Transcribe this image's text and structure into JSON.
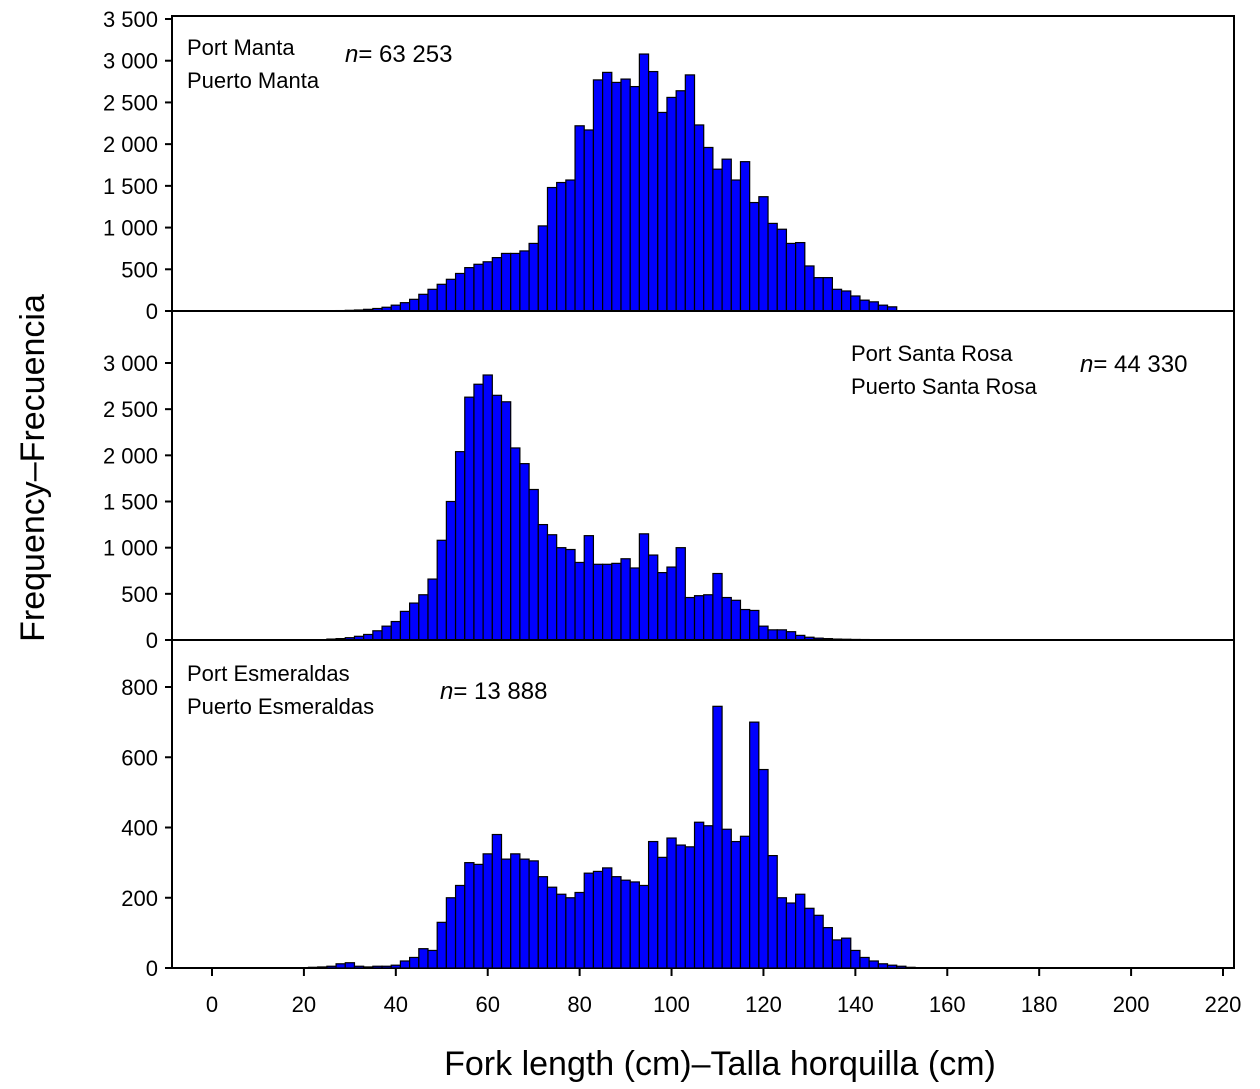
{
  "chart_data": {
    "type": "bar",
    "xlabel": "Fork length (cm)–Talla horquilla (cm)",
    "ylabel": "Frequency–Frecuencia",
    "xlim": [
      -8,
      220
    ],
    "x_ticks": [
      0,
      20,
      40,
      60,
      80,
      100,
      120,
      140,
      160,
      180,
      200,
      220
    ],
    "bin_width_cm": 2,
    "grid": false,
    "bar_color": "#0000ff",
    "bar_edge_color": "#000000",
    "panels": [
      {
        "label_line1": "Port Manta",
        "label_line2": "Puerto Manta",
        "n_prefix": "n",
        "n_suffix": "= 63 253",
        "ylim": [
          0,
          3500
        ],
        "y_ticks": [
          0,
          500,
          1000,
          1500,
          2000,
          2500,
          3000,
          3500
        ],
        "y_tick_labels": [
          "0",
          "500",
          "1 000",
          "1 500",
          "2 000",
          "2 500",
          "3 000",
          "3 500"
        ],
        "x": [
          26,
          28,
          30,
          32,
          34,
          36,
          38,
          40,
          42,
          44,
          46,
          48,
          50,
          52,
          54,
          56,
          58,
          60,
          62,
          64,
          66,
          68,
          70,
          72,
          74,
          76,
          78,
          80,
          82,
          84,
          86,
          88,
          90,
          92,
          94,
          96,
          98,
          100,
          102,
          104,
          106,
          108,
          110,
          112,
          114,
          116,
          118,
          120,
          122,
          124,
          126,
          128,
          130,
          132,
          134,
          136,
          138,
          140,
          142,
          144,
          146,
          148
        ],
        "values": [
          3,
          5,
          8,
          12,
          20,
          30,
          45,
          70,
          100,
          140,
          200,
          260,
          320,
          380,
          450,
          520,
          560,
          590,
          640,
          690,
          690,
          720,
          810,
          1020,
          1480,
          1540,
          1570,
          2220,
          2170,
          2770,
          2860,
          2740,
          2780,
          2690,
          3080,
          2870,
          2380,
          2560,
          2640,
          2830,
          2230,
          1960,
          1700,
          1820,
          1570,
          1790,
          1300,
          1370,
          1050,
          980,
          810,
          820,
          540,
          400,
          400,
          260,
          240,
          180,
          130,
          110,
          70,
          50
        ]
      },
      {
        "label_line1": "Port Santa Rosa",
        "label_line2": "Puerto Santa Rosa",
        "n_prefix": "n",
        "n_suffix": "= 44 330",
        "ylim": [
          0,
          3000
        ],
        "y_ticks": [
          0,
          500,
          1000,
          1500,
          2000,
          2500,
          3000
        ],
        "y_tick_labels": [
          "0",
          "500",
          "1 000",
          "1 500",
          "2 000",
          "2 500",
          "3 000"
        ],
        "x": [
          26,
          28,
          30,
          32,
          34,
          36,
          38,
          40,
          42,
          44,
          46,
          48,
          50,
          52,
          54,
          56,
          58,
          60,
          62,
          64,
          66,
          68,
          70,
          72,
          74,
          76,
          78,
          80,
          82,
          84,
          86,
          88,
          90,
          92,
          94,
          96,
          98,
          100,
          102,
          104,
          106,
          108,
          110,
          112,
          114,
          116,
          118,
          120,
          122,
          124,
          126,
          128,
          130,
          132,
          134,
          136,
          138,
          140,
          142,
          144,
          146,
          148
        ],
        "values": [
          10,
          15,
          25,
          40,
          60,
          100,
          150,
          200,
          310,
          400,
          490,
          660,
          1080,
          1500,
          2040,
          2630,
          2770,
          2870,
          2650,
          2580,
          2080,
          1910,
          1630,
          1250,
          1140,
          1000,
          980,
          840,
          1130,
          820,
          820,
          830,
          880,
          780,
          1150,
          920,
          730,
          790,
          1000,
          460,
          480,
          490,
          720,
          460,
          430,
          330,
          320,
          150,
          110,
          110,
          90,
          50,
          30,
          20,
          15,
          10,
          8,
          6,
          5,
          4,
          3,
          2
        ]
      },
      {
        "label_line1": "Port Esmeraldas",
        "label_line2": "Puerto  Esmeraldas",
        "n_prefix": "n",
        "n_suffix": "= 13 888",
        "ylim": [
          0,
          800
        ],
        "y_ticks": [
          0,
          200,
          400,
          600,
          800
        ],
        "y_tick_labels": [
          "0",
          "200",
          "400",
          "600",
          "800"
        ],
        "x": [
          22,
          24,
          26,
          28,
          30,
          32,
          34,
          36,
          38,
          40,
          42,
          44,
          46,
          48,
          50,
          52,
          54,
          56,
          58,
          60,
          62,
          64,
          66,
          68,
          70,
          72,
          74,
          76,
          78,
          80,
          82,
          84,
          86,
          88,
          90,
          92,
          94,
          96,
          98,
          100,
          102,
          104,
          106,
          108,
          110,
          112,
          114,
          116,
          118,
          120,
          122,
          124,
          126,
          128,
          130,
          132,
          134,
          136,
          138,
          140,
          142,
          144,
          146,
          148,
          150,
          152,
          154
        ],
        "values": [
          2,
          3,
          5,
          12,
          15,
          5,
          3,
          5,
          5,
          8,
          20,
          30,
          55,
          50,
          130,
          200,
          235,
          300,
          295,
          325,
          380,
          310,
          325,
          310,
          305,
          260,
          230,
          210,
          200,
          215,
          270,
          275,
          285,
          260,
          250,
          245,
          235,
          360,
          315,
          370,
          350,
          345,
          415,
          405,
          745,
          395,
          360,
          375,
          700,
          565,
          320,
          200,
          185,
          210,
          170,
          150,
          115,
          80,
          85,
          50,
          30,
          20,
          12,
          8,
          5,
          2,
          1
        ]
      }
    ]
  }
}
